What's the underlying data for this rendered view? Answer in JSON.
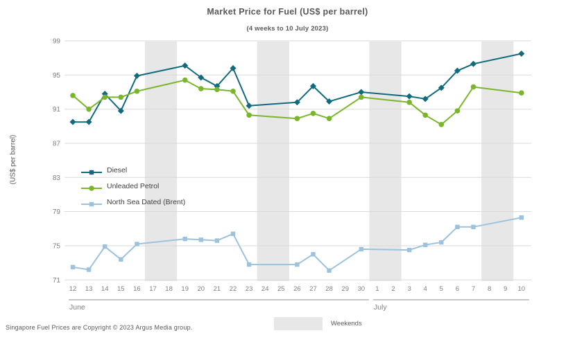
{
  "title": "Market Price for Fuel (US$ per barrel)",
  "subtitle": "(4 weeks to 10 July 2023)",
  "footer": "Singapore Fuel Prices are Copyright © 2023 Argus Media group.",
  "weekend_legend_label": "Weekends",
  "chart_data": {
    "type": "line",
    "title": "Market Price for Fuel (US$ per barrel)",
    "subtitle": "(4 weeks to 10 July 2023)",
    "ylabel": "(US$ per barrel)",
    "xlabel": "",
    "ylim": [
      71,
      99
    ],
    "yticks": [
      71,
      75,
      79,
      83,
      87,
      91,
      95,
      99
    ],
    "grid": "horizontal",
    "legend_position": "inside-left",
    "x_tick_labels": [
      "12",
      "13",
      "14",
      "15",
      "16",
      "17",
      "18",
      "19",
      "20",
      "21",
      "22",
      "23",
      "24",
      "25",
      "26",
      "27",
      "28",
      "29",
      "30",
      "1",
      "2",
      "3",
      "4",
      "5",
      "6",
      "7",
      "8",
      "9",
      "10"
    ],
    "month_groups": [
      {
        "label": "June",
        "from": 0,
        "to": 18
      },
      {
        "label": "July",
        "from": 19,
        "to": 28
      }
    ],
    "weekend_day_indices": [
      [
        5,
        6
      ],
      [
        12,
        13
      ],
      [
        19,
        20
      ],
      [
        26,
        27
      ]
    ],
    "weekend_band_color": "#e7e7e7",
    "gridline_color": "#d9d9d9",
    "series": [
      {
        "name": "Diesel",
        "color": "#116a7d",
        "marker": "diamond",
        "x_indices": [
          0,
          1,
          2,
          3,
          4,
          7,
          8,
          9,
          10,
          11,
          14,
          15,
          16,
          18,
          21,
          22,
          23,
          24,
          25,
          28
        ],
        "values": [
          89.5,
          89.5,
          92.8,
          90.8,
          94.9,
          96.1,
          94.7,
          93.7,
          95.8,
          91.4,
          91.8,
          93.7,
          91.9,
          93.0,
          92.5,
          92.2,
          93.5,
          95.5,
          96.3,
          97.5
        ]
      },
      {
        "name": "Unleaded Petrol",
        "color": "#7ab62c",
        "marker": "circle",
        "x_indices": [
          0,
          1,
          2,
          3,
          4,
          7,
          8,
          9,
          10,
          11,
          14,
          15,
          16,
          18,
          21,
          22,
          23,
          24,
          25,
          28
        ],
        "values": [
          92.6,
          91.0,
          92.4,
          92.4,
          93.1,
          94.4,
          93.4,
          93.3,
          93.1,
          90.3,
          89.9,
          90.5,
          89.9,
          92.4,
          91.8,
          90.3,
          89.2,
          90.8,
          93.6,
          92.9
        ]
      },
      {
        "name": "North Sea Dated (Brent)",
        "color": "#9cc2dd",
        "marker": "square",
        "x_indices": [
          0,
          1,
          2,
          3,
          4,
          7,
          8,
          9,
          10,
          11,
          14,
          15,
          16,
          18,
          21,
          22,
          23,
          24,
          25,
          28
        ],
        "values": [
          72.5,
          72.2,
          74.9,
          73.4,
          75.2,
          75.8,
          75.7,
          75.6,
          76.4,
          72.8,
          72.8,
          74.0,
          72.1,
          74.6,
          74.5,
          75.1,
          75.4,
          77.2,
          77.2,
          78.3
        ]
      }
    ]
  }
}
